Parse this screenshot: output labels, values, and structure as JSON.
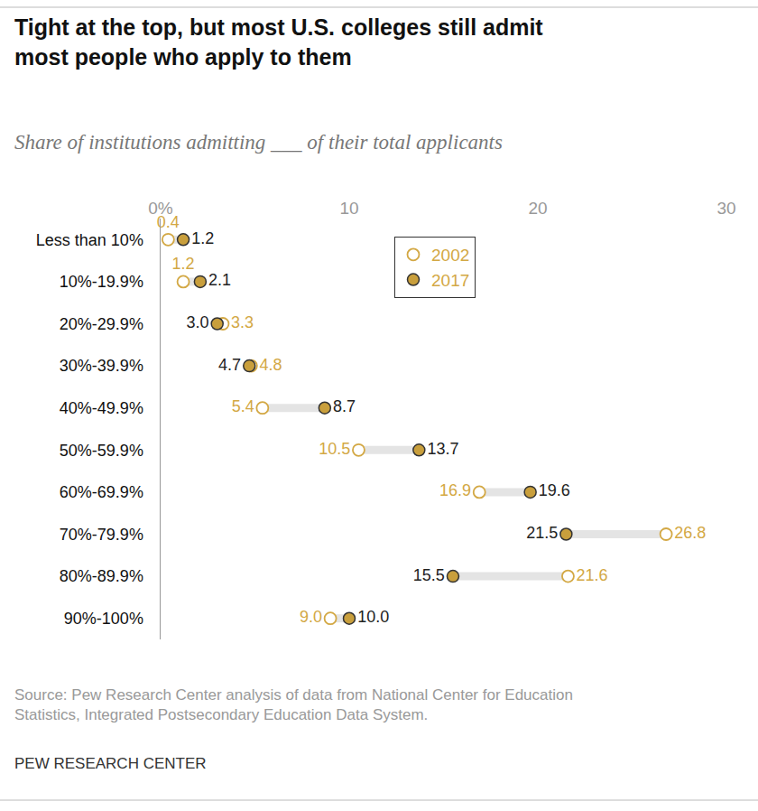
{
  "chart_data": {
    "type": "dot",
    "title": "Tight at the top, but most U.S. colleges still admit most people who apply to them",
    "subtitle": "Share of institutions admitting ___ of their total applicants",
    "source": "Source: Pew Research Center analysis of data from National Center for Education Statistics, Integrated Postsecondary Education Data System.",
    "credit": "PEW RESEARCH CENTER",
    "categories": [
      "Less than 10%",
      "10%-19.9%",
      "20%-29.9%",
      "30%-39.9%",
      "40%-49.9%",
      "50%-59.9%",
      "60%-69.9%",
      "70%-79.9%",
      "80%-89.9%",
      "90%-100%"
    ],
    "series": [
      {
        "name": "2002",
        "color": "#d3a844",
        "marker": "open",
        "values": [
          0.4,
          1.2,
          3.3,
          4.8,
          5.4,
          10.5,
          16.9,
          26.8,
          21.6,
          9.0
        ],
        "value_labels": [
          "0.4",
          "1.2",
          "3.3",
          "4.8",
          "5.4",
          "10.5",
          "16.9",
          "26.8",
          "21.6",
          "9.0"
        ]
      },
      {
        "name": "2017",
        "color": "#c99f3c",
        "marker": "filled",
        "values": [
          1.2,
          2.1,
          3.0,
          4.7,
          8.7,
          13.7,
          19.6,
          21.5,
          15.5,
          10.0
        ],
        "value_labels": [
          "1.2",
          "2.1",
          "3.0",
          "4.7",
          "8.7",
          "13.7",
          "19.6",
          "21.5",
          "15.5",
          "10.0"
        ]
      }
    ],
    "xlim": [
      0,
      30
    ],
    "xticks": [
      {
        "value": 0,
        "label": "0%"
      },
      10,
      20,
      30
    ],
    "orientation": "horizontal",
    "data_labels": true,
    "grid": false,
    "legend": "top"
  }
}
